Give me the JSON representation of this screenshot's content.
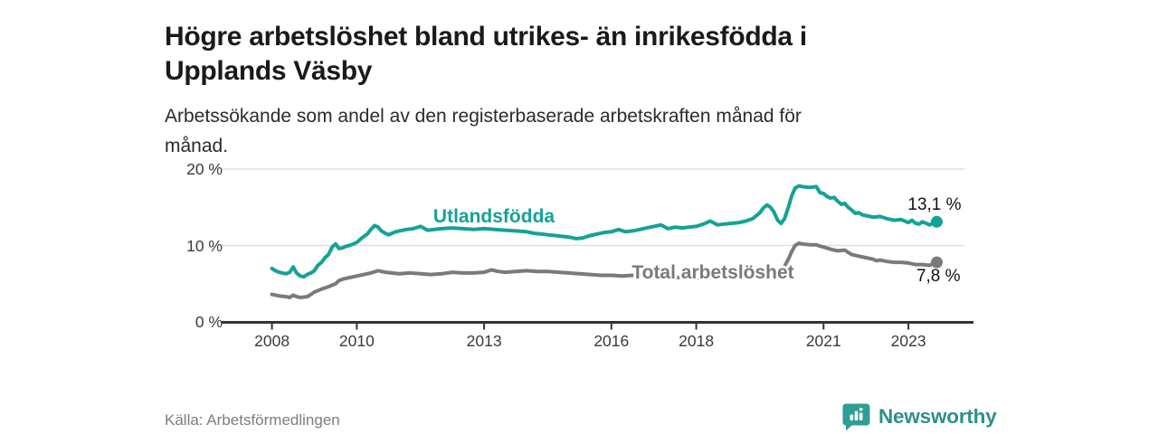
{
  "header": {
    "title_line1": "Högre arbetslöshet bland utrikes- än inrikesfödda i",
    "title_line2": "Upplands Väsby",
    "subtitle_line1": "Arbetssökande som andel av den registerbaserade arbetskraften månad för",
    "subtitle_line2": "månad."
  },
  "footer": {
    "source": "Källa: Arbetsförmedlingen",
    "brand": "Newsworthy"
  },
  "colors": {
    "accent_teal": "#15a296",
    "series_gray": "#7a7a7a",
    "brand_teal": "#2e8f89",
    "axis": "#333333",
    "grid": "#dcdcdc",
    "text_dark": "#1a1a1a",
    "muted_text": "#7d7d7d"
  },
  "chart_data": {
    "type": "line",
    "title": "Högre arbetslöshet bland utrikes- än inrikesfödda i Upplands Väsby",
    "subtitle": "Arbetssökande som andel av den registerbaserade arbetskraften månad för månad.",
    "xlabel": "",
    "ylabel": "",
    "grid": true,
    "legend": "inline-labels",
    "x_range_years": [
      2008,
      2023.67
    ],
    "y_axis": {
      "range": [
        0,
        20
      ],
      "ticks": [
        {
          "label": "20 %",
          "value": 20
        },
        {
          "label": "10 %",
          "value": 10
        },
        {
          "label": "0 %",
          "value": 0
        }
      ]
    },
    "x_axis": {
      "ticks": [
        {
          "label": "2008",
          "value": 2008
        },
        {
          "label": "2010",
          "value": 2010
        },
        {
          "label": "2013",
          "value": 2013
        },
        {
          "label": "2016",
          "value": 2016
        },
        {
          "label": "2018",
          "value": 2018
        },
        {
          "label": "2021",
          "value": 2021
        },
        {
          "label": "2023",
          "value": 2023
        }
      ]
    },
    "series": [
      {
        "name": "Utlandsfödda",
        "color": "#15a296",
        "end_label": "13,1 %",
        "end_value": 13.1,
        "points": [
          [
            2008.0,
            7.0
          ],
          [
            2008.08,
            6.7
          ],
          [
            2008.17,
            6.5
          ],
          [
            2008.25,
            6.4
          ],
          [
            2008.33,
            6.3
          ],
          [
            2008.42,
            6.5
          ],
          [
            2008.5,
            7.2
          ],
          [
            2008.58,
            6.4
          ],
          [
            2008.67,
            6.0
          ],
          [
            2008.75,
            5.9
          ],
          [
            2008.83,
            6.2
          ],
          [
            2008.92,
            6.4
          ],
          [
            2009.0,
            6.7
          ],
          [
            2009.08,
            7.4
          ],
          [
            2009.17,
            7.8
          ],
          [
            2009.25,
            8.4
          ],
          [
            2009.33,
            8.8
          ],
          [
            2009.42,
            9.8
          ],
          [
            2009.5,
            10.2
          ],
          [
            2009.58,
            9.6
          ],
          [
            2009.67,
            9.7
          ],
          [
            2009.75,
            9.9
          ],
          [
            2009.83,
            10.0
          ],
          [
            2009.92,
            10.2
          ],
          [
            2010.0,
            10.4
          ],
          [
            2010.08,
            10.8
          ],
          [
            2010.17,
            11.2
          ],
          [
            2010.25,
            11.5
          ],
          [
            2010.33,
            12.1
          ],
          [
            2010.42,
            12.6
          ],
          [
            2010.5,
            12.4
          ],
          [
            2010.58,
            11.9
          ],
          [
            2010.67,
            11.6
          ],
          [
            2010.75,
            11.4
          ],
          [
            2010.83,
            11.6
          ],
          [
            2010.92,
            11.8
          ],
          [
            2011.0,
            11.9
          ],
          [
            2011.17,
            12.1
          ],
          [
            2011.33,
            12.2
          ],
          [
            2011.5,
            12.5
          ],
          [
            2011.67,
            12.0
          ],
          [
            2011.83,
            12.1
          ],
          [
            2012.0,
            12.2
          ],
          [
            2012.25,
            12.3
          ],
          [
            2012.5,
            12.2
          ],
          [
            2012.75,
            12.1
          ],
          [
            2013.0,
            12.2
          ],
          [
            2013.25,
            12.1
          ],
          [
            2013.5,
            12.0
          ],
          [
            2013.75,
            11.9
          ],
          [
            2014.0,
            11.8
          ],
          [
            2014.17,
            11.6
          ],
          [
            2014.33,
            11.5
          ],
          [
            2014.5,
            11.4
          ],
          [
            2014.67,
            11.3
          ],
          [
            2014.83,
            11.2
          ],
          [
            2015.0,
            11.1
          ],
          [
            2015.17,
            10.9
          ],
          [
            2015.33,
            11.0
          ],
          [
            2015.5,
            11.3
          ],
          [
            2015.67,
            11.5
          ],
          [
            2015.83,
            11.7
          ],
          [
            2016.0,
            11.8
          ],
          [
            2016.17,
            12.1
          ],
          [
            2016.33,
            11.8
          ],
          [
            2016.5,
            11.9
          ],
          [
            2016.67,
            12.1
          ],
          [
            2016.83,
            12.3
          ],
          [
            2017.0,
            12.5
          ],
          [
            2017.17,
            12.7
          ],
          [
            2017.33,
            12.2
          ],
          [
            2017.5,
            12.4
          ],
          [
            2017.67,
            12.3
          ],
          [
            2017.83,
            12.4
          ],
          [
            2018.0,
            12.5
          ],
          [
            2018.17,
            12.8
          ],
          [
            2018.33,
            13.2
          ],
          [
            2018.5,
            12.7
          ],
          [
            2018.67,
            12.8
          ],
          [
            2018.83,
            12.9
          ],
          [
            2019.0,
            13.0
          ],
          [
            2019.17,
            13.2
          ],
          [
            2019.33,
            13.5
          ],
          [
            2019.5,
            14.3
          ],
          [
            2019.58,
            14.9
          ],
          [
            2019.67,
            15.3
          ],
          [
            2019.75,
            15.0
          ],
          [
            2019.83,
            14.4
          ],
          [
            2019.92,
            13.3
          ],
          [
            2020.0,
            12.9
          ],
          [
            2020.08,
            13.5
          ],
          [
            2020.17,
            15.0
          ],
          [
            2020.25,
            16.5
          ],
          [
            2020.33,
            17.5
          ],
          [
            2020.42,
            17.8
          ],
          [
            2020.5,
            17.7
          ],
          [
            2020.67,
            17.6
          ],
          [
            2020.83,
            17.7
          ],
          [
            2020.92,
            16.9
          ],
          [
            2021.0,
            16.8
          ],
          [
            2021.08,
            16.4
          ],
          [
            2021.17,
            16.2
          ],
          [
            2021.25,
            16.3
          ],
          [
            2021.33,
            15.8
          ],
          [
            2021.42,
            15.4
          ],
          [
            2021.5,
            15.5
          ],
          [
            2021.58,
            15.0
          ],
          [
            2021.67,
            14.6
          ],
          [
            2021.75,
            14.2
          ],
          [
            2021.83,
            14.3
          ],
          [
            2021.92,
            14.0
          ],
          [
            2022.0,
            13.9
          ],
          [
            2022.17,
            13.7
          ],
          [
            2022.33,
            13.8
          ],
          [
            2022.5,
            13.5
          ],
          [
            2022.67,
            13.3
          ],
          [
            2022.83,
            13.4
          ],
          [
            2023.0,
            13.0
          ],
          [
            2023.08,
            13.3
          ],
          [
            2023.17,
            12.9
          ],
          [
            2023.25,
            12.8
          ],
          [
            2023.33,
            13.1
          ],
          [
            2023.42,
            12.9
          ],
          [
            2023.5,
            12.7
          ],
          [
            2023.58,
            12.9
          ],
          [
            2023.67,
            13.1
          ]
        ]
      },
      {
        "name": "Total arbetslöshet",
        "color": "#7a7a7a",
        "end_label": "7,8 %",
        "end_value": 7.8,
        "points": [
          [
            2008.0,
            3.6
          ],
          [
            2008.17,
            3.4
          ],
          [
            2008.33,
            3.3
          ],
          [
            2008.42,
            3.2
          ],
          [
            2008.5,
            3.5
          ],
          [
            2008.58,
            3.3
          ],
          [
            2008.67,
            3.2
          ],
          [
            2008.83,
            3.3
          ],
          [
            2008.92,
            3.6
          ],
          [
            2009.0,
            3.9
          ],
          [
            2009.17,
            4.3
          ],
          [
            2009.33,
            4.6
          ],
          [
            2009.5,
            5.0
          ],
          [
            2009.58,
            5.4
          ],
          [
            2009.67,
            5.6
          ],
          [
            2009.83,
            5.8
          ],
          [
            2010.0,
            6.0
          ],
          [
            2010.17,
            6.2
          ],
          [
            2010.33,
            6.4
          ],
          [
            2010.5,
            6.7
          ],
          [
            2010.67,
            6.5
          ],
          [
            2010.83,
            6.4
          ],
          [
            2011.0,
            6.3
          ],
          [
            2011.25,
            6.4
          ],
          [
            2011.5,
            6.3
          ],
          [
            2011.75,
            6.2
          ],
          [
            2012.0,
            6.3
          ],
          [
            2012.25,
            6.5
          ],
          [
            2012.5,
            6.4
          ],
          [
            2012.75,
            6.4
          ],
          [
            2013.0,
            6.5
          ],
          [
            2013.17,
            6.8
          ],
          [
            2013.33,
            6.6
          ],
          [
            2013.5,
            6.5
          ],
          [
            2013.75,
            6.6
          ],
          [
            2014.0,
            6.7
          ],
          [
            2014.25,
            6.6
          ],
          [
            2014.5,
            6.6
          ],
          [
            2014.75,
            6.5
          ],
          [
            2015.0,
            6.4
          ],
          [
            2015.25,
            6.3
          ],
          [
            2015.5,
            6.2
          ],
          [
            2015.75,
            6.1
          ],
          [
            2016.0,
            6.1
          ],
          [
            2016.25,
            6.0
          ],
          [
            2016.5,
            6.1
          ],
          [
            2016.75,
            6.0
          ],
          [
            2017.0,
            5.9
          ],
          [
            2017.25,
            5.9
          ],
          [
            2017.5,
            5.8
          ],
          [
            2017.75,
            5.9
          ],
          [
            2018.0,
            5.8
          ],
          [
            2018.25,
            5.9
          ],
          [
            2018.5,
            5.8
          ],
          [
            2018.75,
            5.9
          ],
          [
            2019.0,
            6.0
          ],
          [
            2019.25,
            6.2
          ],
          [
            2019.5,
            6.4
          ],
          [
            2019.75,
            6.6
          ],
          [
            2019.92,
            6.7
          ],
          [
            2020.0,
            6.8
          ],
          [
            2020.08,
            7.3
          ],
          [
            2020.17,
            8.2
          ],
          [
            2020.25,
            9.2
          ],
          [
            2020.33,
            10.0
          ],
          [
            2020.42,
            10.3
          ],
          [
            2020.5,
            10.2
          ],
          [
            2020.67,
            10.1
          ],
          [
            2020.83,
            10.1
          ],
          [
            2020.92,
            9.9
          ],
          [
            2021.0,
            9.8
          ],
          [
            2021.17,
            9.5
          ],
          [
            2021.33,
            9.3
          ],
          [
            2021.5,
            9.4
          ],
          [
            2021.58,
            9.1
          ],
          [
            2021.67,
            8.8
          ],
          [
            2021.83,
            8.6
          ],
          [
            2022.0,
            8.4
          ],
          [
            2022.17,
            8.2
          ],
          [
            2022.25,
            8.0
          ],
          [
            2022.33,
            8.1
          ],
          [
            2022.5,
            7.9
          ],
          [
            2022.67,
            7.8
          ],
          [
            2022.83,
            7.8
          ],
          [
            2023.0,
            7.7
          ],
          [
            2023.17,
            7.5
          ],
          [
            2023.33,
            7.5
          ],
          [
            2023.5,
            7.4
          ],
          [
            2023.58,
            7.6
          ],
          [
            2023.67,
            7.8
          ]
        ]
      }
    ]
  }
}
